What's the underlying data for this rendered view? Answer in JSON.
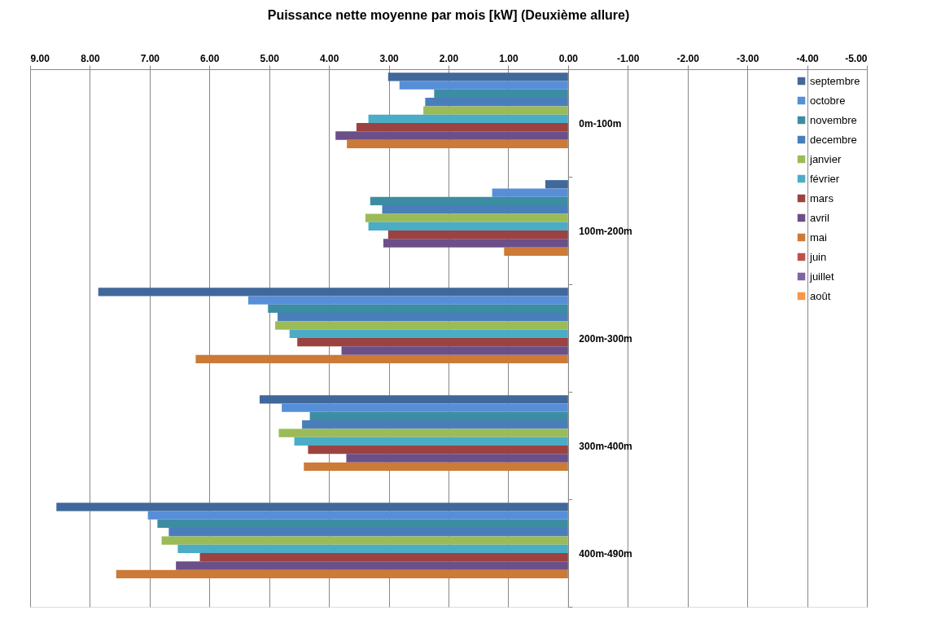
{
  "chart_data": {
    "type": "bar",
    "orientation": "horizontal",
    "title": "Puissance nette moyenne par mois [kW] (Deuxième allure)",
    "categories": [
      "0m-100m",
      "100m-200m",
      "200m-300m",
      "300m-400m",
      "400m-490m"
    ],
    "series": [
      {
        "name": "septembre",
        "color": "#41689b",
        "values": [
          3.01,
          0.38,
          7.86,
          5.16,
          8.56
        ]
      },
      {
        "name": "octobre",
        "color": "#568fd8",
        "values": [
          2.82,
          1.27,
          5.35,
          4.79,
          7.03
        ]
      },
      {
        "name": "novembre",
        "color": "#3c8da3",
        "values": [
          2.24,
          3.31,
          5.02,
          4.32,
          6.87
        ]
      },
      {
        "name": "decembre",
        "color": "#4a7ebb",
        "values": [
          2.39,
          3.11,
          4.86,
          4.45,
          6.68
        ]
      },
      {
        "name": "janvier",
        "color": "#9bbb59",
        "values": [
          2.42,
          3.39,
          4.9,
          4.84,
          6.8
        ]
      },
      {
        "name": "février",
        "color": "#4bacc6",
        "values": [
          3.34,
          3.34,
          4.66,
          4.58,
          6.53
        ]
      },
      {
        "name": "mars",
        "color": "#9c4240",
        "values": [
          3.54,
          3.01,
          4.53,
          4.35,
          6.16
        ]
      },
      {
        "name": "avril",
        "color": "#6b4f88",
        "values": [
          3.89,
          3.09,
          3.79,
          3.71,
          6.56
        ]
      },
      {
        "name": "mai",
        "color": "#cc7a37",
        "values": [
          3.7,
          1.07,
          6.23,
          4.42,
          7.56
        ]
      },
      {
        "name": "juin",
        "color": "#c0504d",
        "values": [
          null,
          null,
          null,
          null,
          null
        ]
      },
      {
        "name": "juillet",
        "color": "#8064a2",
        "values": [
          null,
          null,
          null,
          null,
          null
        ]
      },
      {
        "name": "août",
        "color": "#f79646",
        "values": [
          null,
          null,
          null,
          null,
          null
        ]
      }
    ],
    "xlim": [
      9,
      -5
    ],
    "xticks": [
      {
        "value": 9,
        "label": "9.00"
      },
      {
        "value": 8,
        "label": "8.00"
      },
      {
        "value": 7,
        "label": "7.00"
      },
      {
        "value": 6,
        "label": "6.00"
      },
      {
        "value": 5,
        "label": "5.00"
      },
      {
        "value": 4,
        "label": "4.00"
      },
      {
        "value": 3,
        "label": "3.00"
      },
      {
        "value": 2,
        "label": "2.00"
      },
      {
        "value": 1,
        "label": "1.00"
      },
      {
        "value": 0,
        "label": "0.00"
      },
      {
        "value": -1,
        "label": "-1.00"
      },
      {
        "value": -2,
        "label": "-2.00"
      },
      {
        "value": -3,
        "label": "-3.00"
      },
      {
        "value": -4,
        "label": "-4.00"
      },
      {
        "value": -5,
        "label": "-5.00"
      }
    ],
    "grid": "x",
    "legend": "right"
  }
}
